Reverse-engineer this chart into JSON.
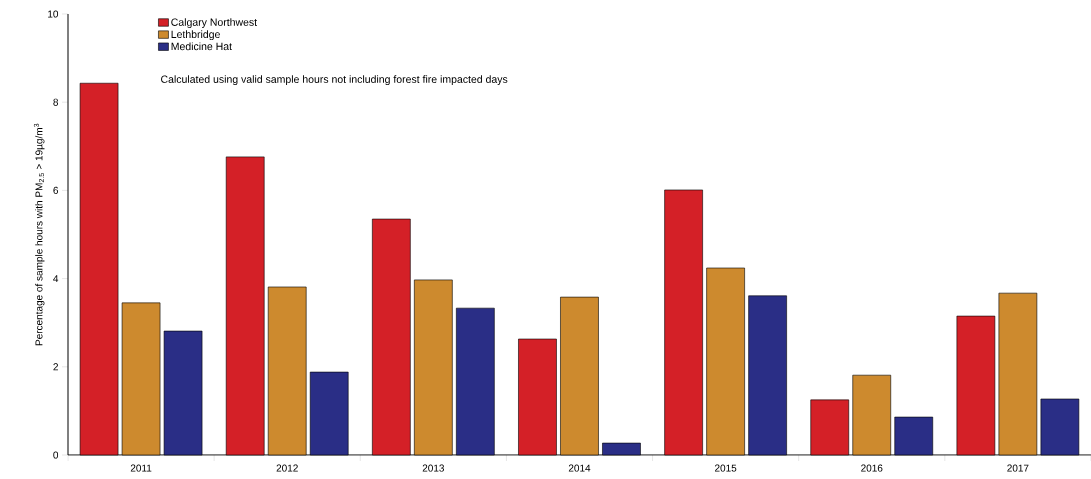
{
  "chart_data": {
    "type": "bar",
    "ylabel": "Percentage of sample hours with PM$_{2.5}$ > 19µg/m$^{3}$",
    "annotations": [
      "Calculated using valid sample hours not including forest fire impacted days"
    ],
    "categories": [
      "2011",
      "2012",
      "2013",
      "2014",
      "2015",
      "2016",
      "2017"
    ],
    "series": [
      {
        "name": "Calgary Northwest",
        "color": "#d42027",
        "values": [
          8.43,
          6.76,
          5.35,
          2.63,
          6.01,
          1.25,
          3.15
        ]
      },
      {
        "name": "Lethbridge",
        "color": "#cd8a2e",
        "values": [
          3.45,
          3.81,
          3.97,
          3.58,
          4.24,
          1.81,
          3.67
        ]
      },
      {
        "name": "Medicine Hat",
        "color": "#2a2e86",
        "values": [
          2.81,
          1.88,
          3.33,
          0.27,
          3.61,
          0.86,
          1.27
        ]
      }
    ],
    "ylim": [
      0,
      10
    ],
    "yticks": [
      0,
      2,
      4,
      6,
      8,
      10
    ],
    "legend": "top left",
    "grid": false
  }
}
